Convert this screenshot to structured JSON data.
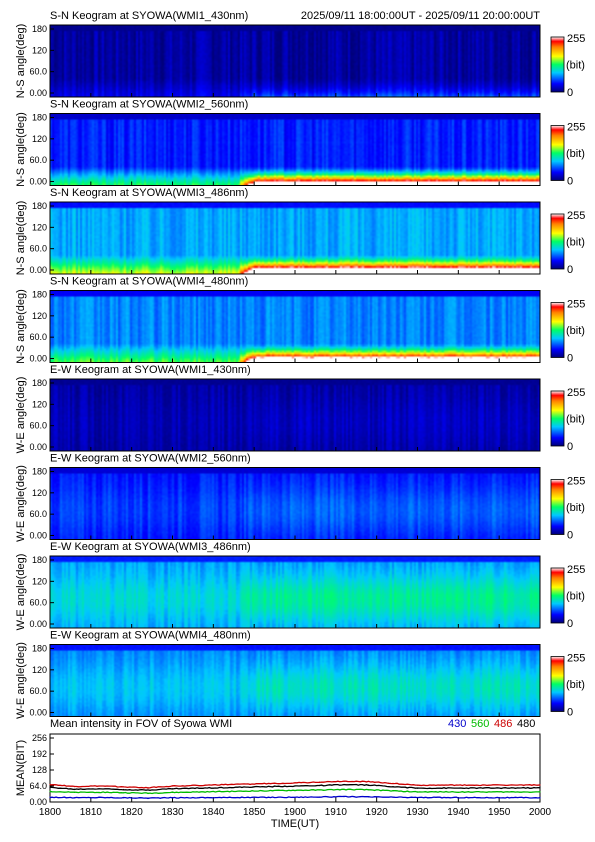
{
  "header": {
    "time_range": "2025/09/11 18:00:00UT - 2025/09/11 20:00:00UT"
  },
  "colorbar": {
    "max_label": "255",
    "unit_label": "(bit)",
    "min_label": "0"
  },
  "keogram_y_ticks": [
    "180",
    "120",
    "60.0",
    "0.00"
  ],
  "panels": [
    {
      "title": "S-N Keogram at SYOWA(WMI1_430nm)",
      "ylabel": "N-S angle(deg)",
      "base": 0.05,
      "amp": 0.04,
      "low": 0.1,
      "bright": 0.1
    },
    {
      "title": "S-N Keogram at SYOWA(WMI2_560nm)",
      "ylabel": "N-S angle(deg)",
      "base": 0.18,
      "amp": 0.48,
      "low": 0.4,
      "bright": 0.55
    },
    {
      "title": "S-N Keogram at SYOWA(WMI3_486nm)",
      "ylabel": "N-S angle(deg)",
      "base": 0.32,
      "amp": 0.5,
      "low": 0.38,
      "bright": 0.85
    },
    {
      "title": "S-N Keogram at SYOWA(WMI4_480nm)",
      "ylabel": "N-S angle(deg)",
      "base": 0.28,
      "amp": 0.48,
      "low": 0.32,
      "bright": 0.75
    },
    {
      "title": "E-W Keogram at SYOWA(WMI1_430nm)",
      "ylabel": "W-E angle(deg)",
      "base": 0.05,
      "amp": 0.03,
      "low": 0.0,
      "bright": 0.0
    },
    {
      "title": "E-W Keogram at SYOWA(WMI2_560nm)",
      "ylabel": "W-E angle(deg)",
      "base": 0.17,
      "amp": 0.07,
      "low": 0.0,
      "bright": 0.0
    },
    {
      "title": "E-W Keogram at SYOWA(WMI3_486nm)",
      "ylabel": "W-E angle(deg)",
      "base": 0.3,
      "amp": 0.14,
      "low": 0.0,
      "bright": 0.0
    },
    {
      "title": "E-W Keogram at SYOWA(WMI4_480nm)",
      "ylabel": "W-E angle(deg)",
      "base": 0.28,
      "amp": 0.12,
      "low": 0.0,
      "bright": 0.0
    }
  ],
  "mean_panel": {
    "title": "Mean intensity in FOV of Syowa WMI",
    "legend": [
      {
        "label": "430",
        "color": "#0000cc"
      },
      {
        "label": "560",
        "color": "#00bb00"
      },
      {
        "label": "486",
        "color": "#cc0000"
      },
      {
        "label": "480",
        "color": "#000000"
      }
    ],
    "ylabel": "MEAN(BIT)",
    "xlabel": "TIME(UT)"
  },
  "chart_data": {
    "type": "line",
    "title": "Mean intensity in FOV of Syowa WMI",
    "xlabel": "TIME(UT)",
    "ylabel": "MEAN(BIT)",
    "xlim": [
      1800,
      2000
    ],
    "ylim": [
      0,
      256
    ],
    "x_ticks": [
      "1800",
      "1810",
      "1820",
      "1830",
      "1840",
      "1850",
      "1900",
      "1910",
      "1920",
      "1930",
      "1940",
      "1950",
      "2000"
    ],
    "y_ticks": [
      "256",
      "192",
      "128",
      "64.0",
      "0.00"
    ],
    "x": [
      1800,
      1810,
      1820,
      1830,
      1840,
      1850,
      1900,
      1910,
      1920,
      1930,
      1940,
      1950,
      2000
    ],
    "series": [
      {
        "name": "430",
        "values": [
          18,
          16,
          17,
          16,
          15,
          16,
          18,
          19,
          20,
          19,
          18,
          17,
          16
        ]
      },
      {
        "name": "560",
        "values": [
          40,
          36,
          37,
          35,
          33,
          36,
          44,
          45,
          47,
          46,
          42,
          38,
          38
        ]
      },
      {
        "name": "486",
        "values": [
          66,
          58,
          60,
          57,
          54,
          60,
          72,
          75,
          78,
          77,
          70,
          63,
          64
        ]
      },
      {
        "name": "480",
        "values": [
          55,
          48,
          50,
          47,
          45,
          50,
          60,
          62,
          65,
          64,
          58,
          52,
          53
        ]
      }
    ]
  }
}
